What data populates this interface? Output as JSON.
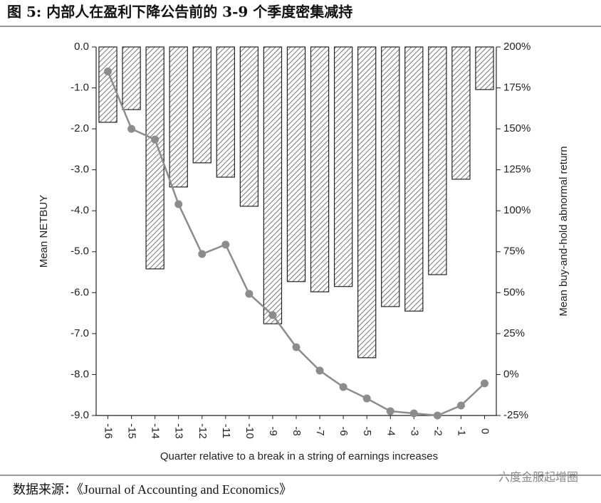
{
  "chart_data": {
    "type": "bar",
    "title": "图 5:  内部人在盈利下降公告前的 3-9 个季度密集减持",
    "x_label": "Quarter relative to a break in a string of earnings increases",
    "y_label": "Mean NETBUY",
    "y2_label": "Mean buy-and-hold abnormal return",
    "categories": [
      "-16",
      "-15",
      "-14",
      "-13",
      "-12",
      "-11",
      "-10",
      "-9",
      "-8",
      "-7",
      "-6",
      "-5",
      "-4",
      "-3",
      "-2",
      "-1",
      "0"
    ],
    "series": [
      {
        "type": "bar",
        "color": "#555555",
        "values": [
          -1.84,
          -1.53,
          -5.42,
          -3.42,
          -2.83,
          -3.18,
          -3.89,
          -6.76,
          -5.73,
          -5.98,
          -5.85,
          -7.59,
          -6.34,
          -6.45,
          -5.56,
          -3.23,
          -1.04
        ]
      },
      {
        "type": "line",
        "axis": "y2",
        "color": "#8c8c8c",
        "values": [
          185,
          150,
          143.5,
          104,
          73.6,
          79.3,
          49.3,
          36.3,
          16.7,
          2.4,
          -7.6,
          -14.6,
          -22.4,
          -23.7,
          -25,
          -18.9,
          -5.4
        ]
      }
    ],
    "ylim": [
      -9,
      0
    ],
    "yticks": [
      {
        "value": 0,
        "label": "0.0"
      },
      {
        "value": -1,
        "label": "-1.0"
      },
      {
        "value": -2,
        "label": "-2.0"
      },
      {
        "value": -3,
        "label": "-3.0"
      },
      {
        "value": -4,
        "label": "-4.0"
      },
      {
        "value": -5,
        "label": "-5.0"
      },
      {
        "value": -6,
        "label": "-6.0"
      },
      {
        "value": -7,
        "label": "-7.0"
      },
      {
        "value": -8,
        "label": "-8.0"
      },
      {
        "value": -9,
        "label": "-9.0"
      }
    ],
    "y2lim": [
      -25,
      200
    ],
    "y2ticks": [
      {
        "value": 200,
        "label": "200%"
      },
      {
        "value": 175,
        "label": "175%"
      },
      {
        "value": 150,
        "label": "150%"
      },
      {
        "value": 125,
        "label": "125%"
      },
      {
        "value": 100,
        "label": "100%"
      },
      {
        "value": 75,
        "label": "75%"
      },
      {
        "value": 50,
        "label": "50%"
      },
      {
        "value": 25,
        "label": "25%"
      },
      {
        "value": 0,
        "label": "0%"
      },
      {
        "value": -25,
        "label": "-25%"
      }
    ],
    "grid": false,
    "source": "数据来源：《Journal of Accounting and Economics》",
    "watermark": "六度金服起增圈"
  }
}
